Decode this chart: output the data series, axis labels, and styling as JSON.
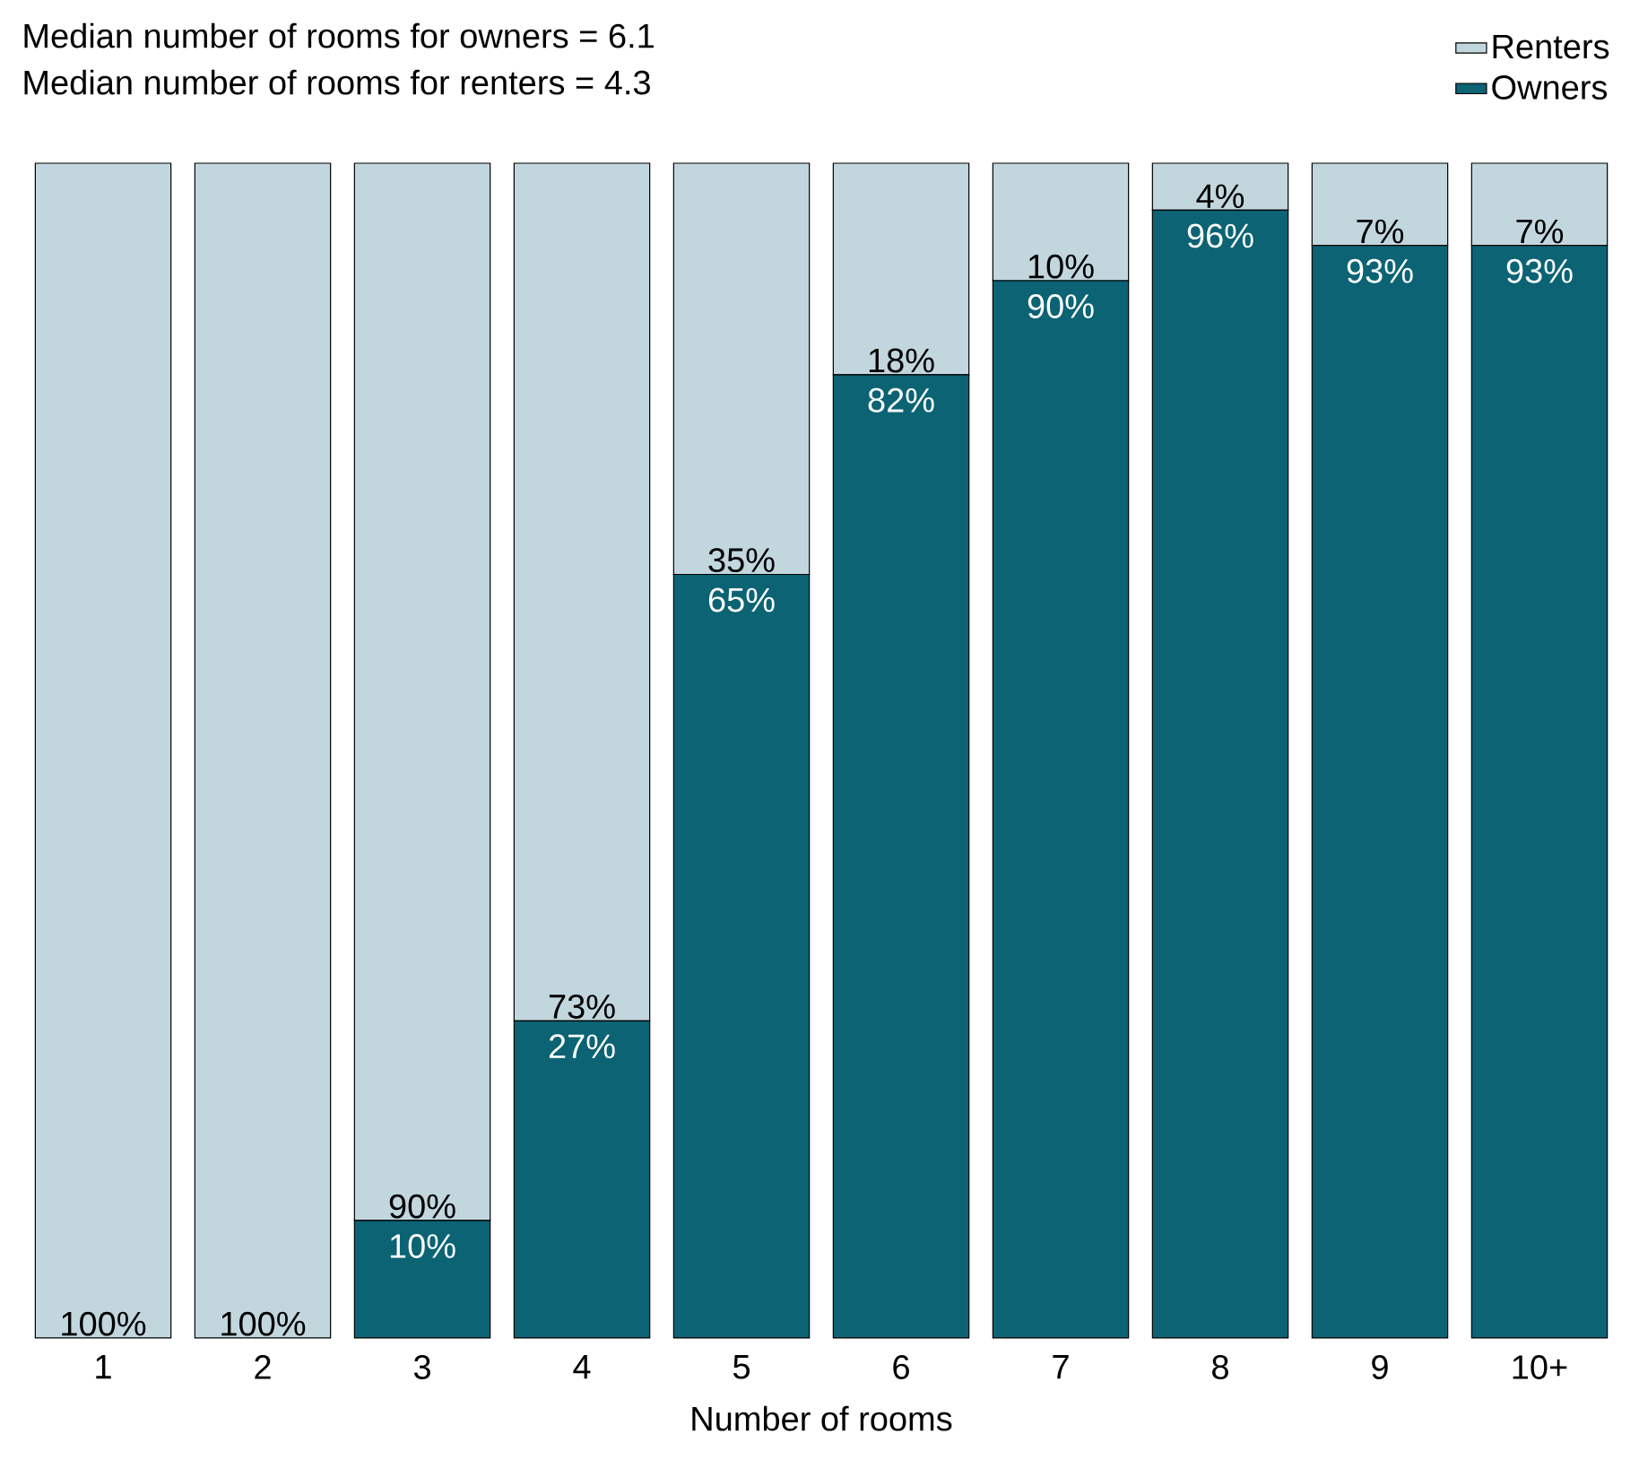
{
  "chart_data": {
    "type": "bar",
    "stacked": true,
    "annotations": [
      "Median number of rooms for owners = 6.1",
      "Median number of rooms for renters = 4.3"
    ],
    "xlabel": "Number of rooms",
    "categories": [
      "1",
      "2",
      "3",
      "4",
      "5",
      "6",
      "7",
      "8",
      "9",
      "10+"
    ],
    "ylim": [
      0,
      100
    ],
    "legend": "top right",
    "series": [
      {
        "name": "Owners",
        "color": "#0b6374",
        "values": [
          0,
          0,
          10,
          27,
          65,
          82,
          90,
          96,
          93,
          93
        ],
        "value_labels": [
          null,
          null,
          "10%",
          "27%",
          "65%",
          "82%",
          "90%",
          "96%",
          "93%",
          "93%"
        ]
      },
      {
        "name": "Renters",
        "color": "#c2d6de",
        "values": [
          100,
          100,
          90,
          73,
          35,
          18,
          10,
          4,
          7,
          7
        ],
        "value_labels": [
          "100%",
          "100%",
          "90%",
          "73%",
          "35%",
          "18%",
          "10%",
          "4%",
          "7%",
          "7%"
        ]
      }
    ]
  }
}
